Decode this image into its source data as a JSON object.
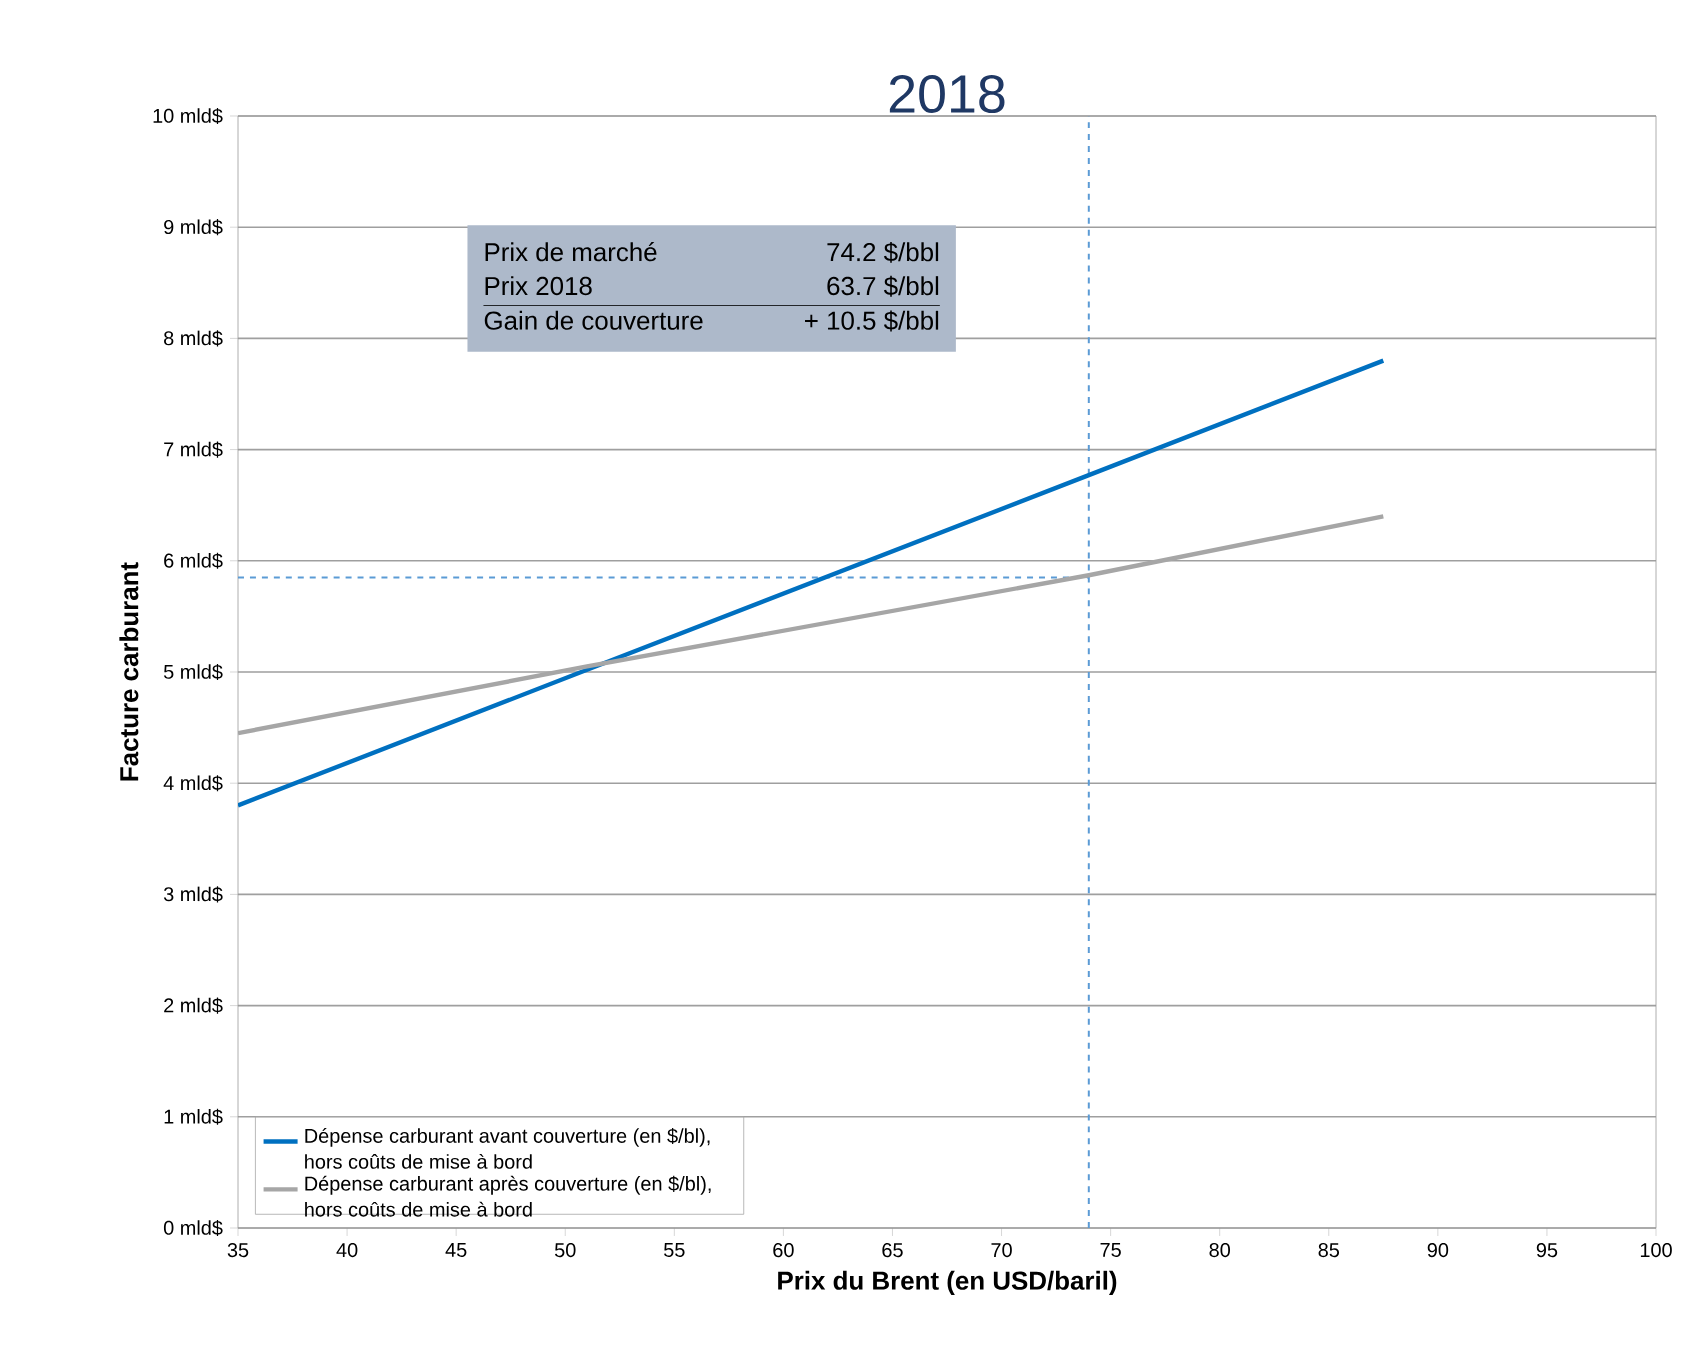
{
  "chart_data": {
    "type": "line",
    "title": "2018",
    "xlabel": "Prix du Brent (en USD/baril)",
    "ylabel": "Facture carburant",
    "series": [
      {
        "name": "Dépense carburant avant couverture (en $/bl), hors coûts de mise à bord",
        "color": "#0070c0",
        "x": [
          35,
          51,
          74,
          87.5
        ],
        "values": [
          3.8,
          5.02,
          6.77,
          7.8
        ]
      },
      {
        "name": "Dépense carburant après couverture (en $/bl), hors coûts de mise à bord",
        "color": "#a6a6a6",
        "x": [
          35,
          51,
          74,
          87.5
        ],
        "values": [
          4.45,
          5.05,
          5.87,
          6.4
        ]
      }
    ],
    "xlim": [
      35,
      100
    ],
    "xticks": [
      35,
      40,
      45,
      50,
      55,
      60,
      65,
      70,
      75,
      80,
      85,
      90,
      95,
      100
    ],
    "ylim": [
      0,
      10
    ],
    "yticks": [
      {
        "value": 0,
        "label": "0 mld$"
      },
      {
        "value": 1,
        "label": "1 mld$"
      },
      {
        "value": 2,
        "label": "2 mld$"
      },
      {
        "value": 3,
        "label": "3 mld$"
      },
      {
        "value": 4,
        "label": "4 mld$"
      },
      {
        "value": 5,
        "label": "5 mld$"
      },
      {
        "value": 6,
        "label": "6 mld$"
      },
      {
        "value": 7,
        "label": "7 mld$"
      },
      {
        "value": 8,
        "label": "8 mld$"
      },
      {
        "value": 9,
        "label": "9 mld$"
      },
      {
        "value": 10,
        "label": "10 mld$"
      }
    ],
    "ref_lines": [
      {
        "axis": "x",
        "value": 74,
        "color": "#5b9bd5",
        "line_style": "dashed"
      },
      {
        "axis": "y",
        "value": 5.85,
        "color": "#5b9bd5",
        "line_style": "dashed"
      }
    ],
    "annotations": [
      "Prix de marché",
      "74.2 $/bbl",
      "Prix 2018",
      "63.7 $/bbl",
      "Gain de couverture",
      "+ 10.5 $/bbl"
    ],
    "grid": "y",
    "legend": "bottom left",
    "marker": "none",
    "line_style": "solid"
  }
}
